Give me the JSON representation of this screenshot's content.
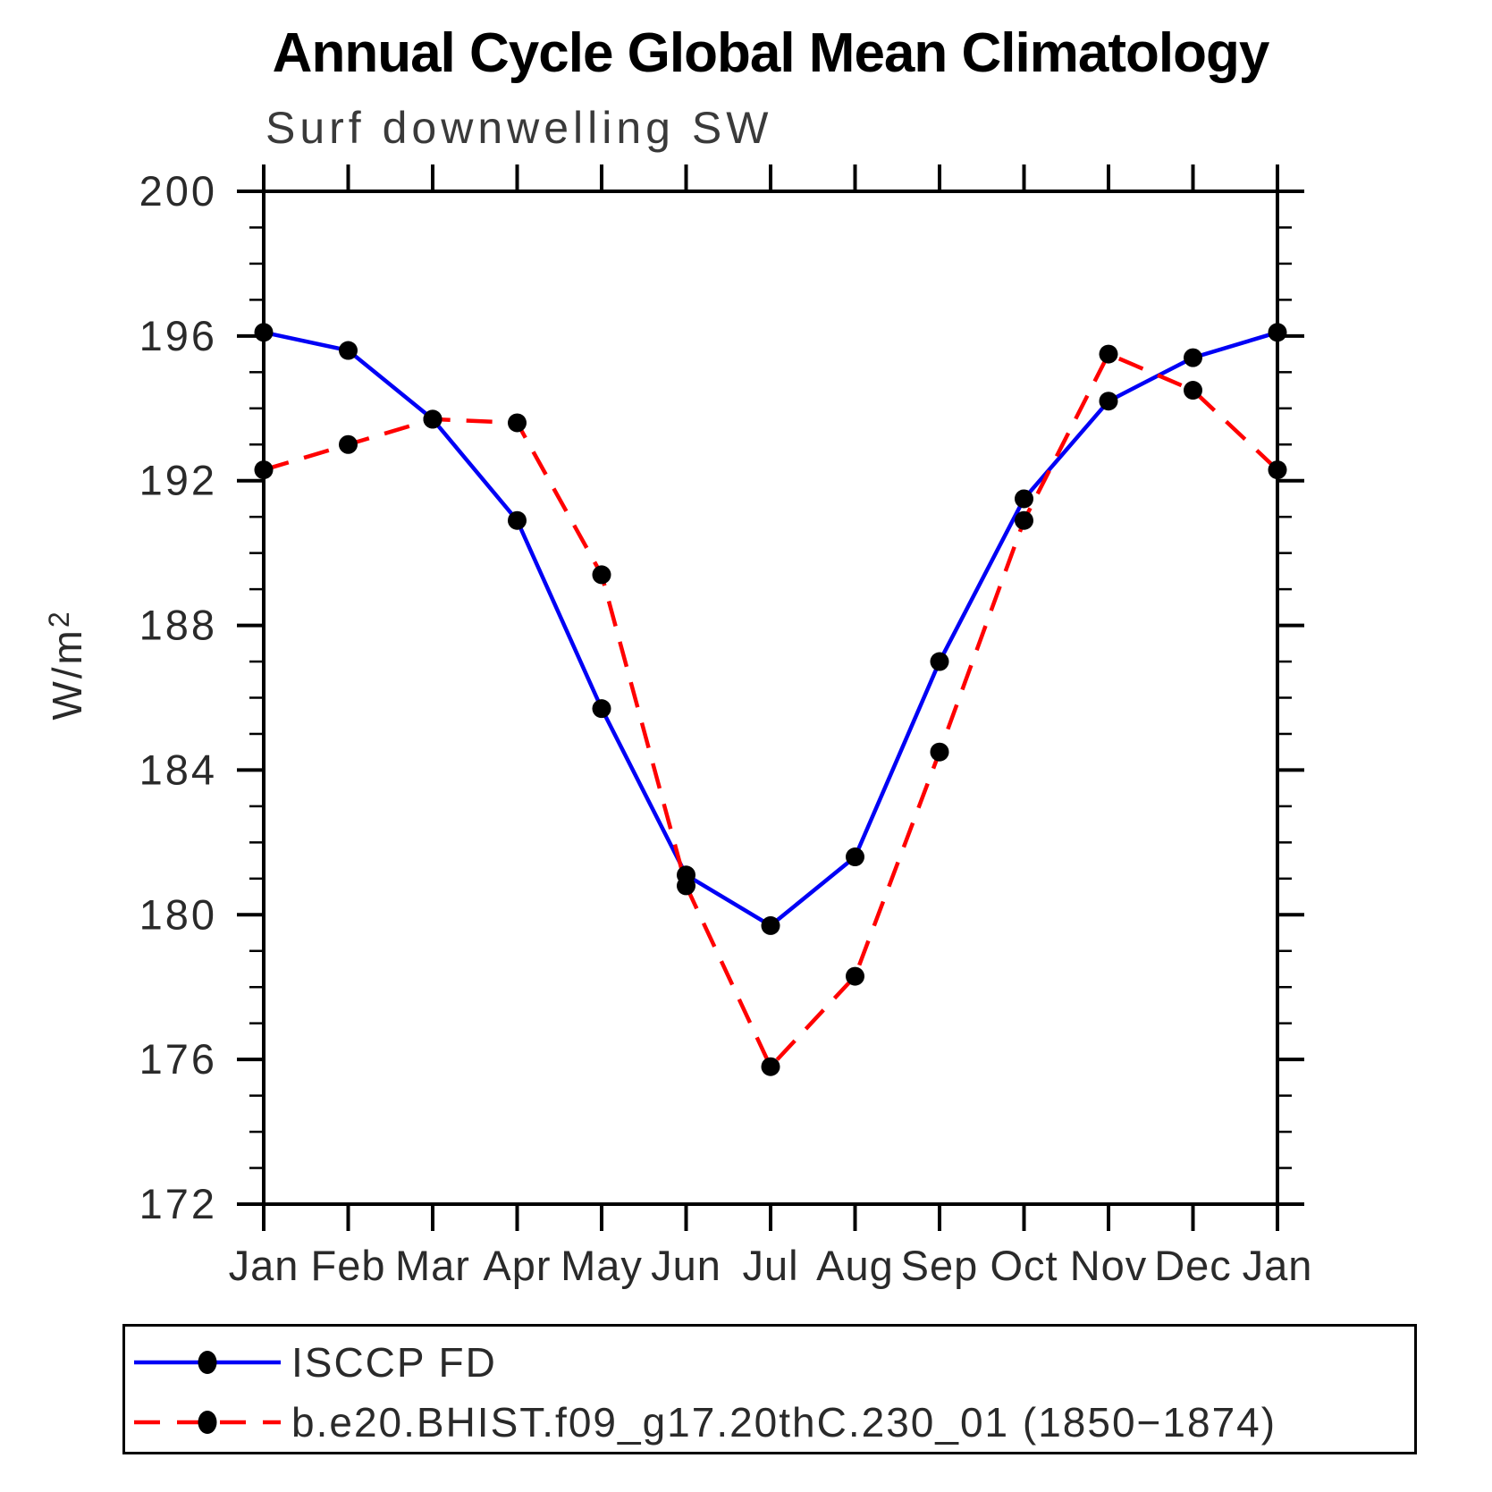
{
  "chart_data": {
    "type": "line",
    "title": "Annual Cycle Global Mean Climatology",
    "subtitle": "Surf downwelling SW",
    "ylabel": "W/m²",
    "ylabel_base": "W/m",
    "ylabel_exp": "2",
    "categories": [
      "Jan",
      "Feb",
      "Mar",
      "Apr",
      "May",
      "Jun",
      "Jul",
      "Aug",
      "Sep",
      "Oct",
      "Nov",
      "Dec",
      "Jan"
    ],
    "ylim": [
      172,
      200
    ],
    "y_major_ticks": [
      172,
      176,
      180,
      184,
      188,
      192,
      196,
      200
    ],
    "y_minor_step": 1,
    "grid": false,
    "axis_style": "box-frame-with-outward-ticks",
    "legend_position": "bottom-left-box",
    "series": [
      {
        "name": "ISCCP FD",
        "color": "#0000f5",
        "line_style": "solid",
        "marker": "filled-circle",
        "marker_color": "#000000",
        "values": [
          196.1,
          195.6,
          193.7,
          190.9,
          185.7,
          181.1,
          179.7,
          181.6,
          187.0,
          191.5,
          194.2,
          195.4,
          196.1
        ]
      },
      {
        "name": "b.e20.BHIST.f09_g17.20thC.230_01 (1850−1874)",
        "color": "#ff0000",
        "line_style": "dashed",
        "marker": "filled-circle",
        "marker_color": "#000000",
        "values": [
          192.3,
          193.0,
          193.7,
          193.6,
          189.4,
          180.8,
          175.8,
          178.3,
          184.5,
          190.9,
          195.5,
          194.5,
          192.3
        ]
      }
    ]
  },
  "colors": {
    "background": "#ffffff",
    "frame": "#000000",
    "text": "#2a2a2a",
    "title": "#000000",
    "obs_line": "#0000f5",
    "model_line": "#ff0000",
    "marker": "#000000"
  }
}
